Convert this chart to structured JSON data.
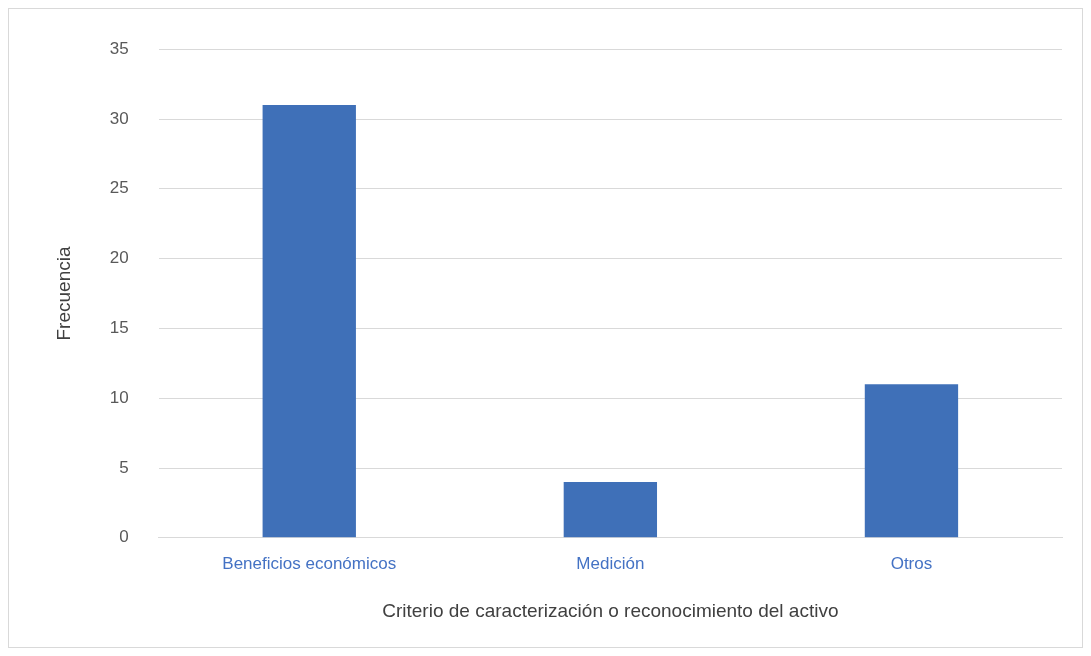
{
  "chart_data": {
    "type": "bar",
    "xlabel": "Criterio de caracterización o reconocimiento del activo",
    "ylabel": "Frecuencia",
    "categories": [
      "Beneficios económicos",
      "Medición",
      "Otros"
    ],
    "values": [
      31,
      4,
      11
    ],
    "color": "#3f70b8",
    "ylim": [
      0,
      35
    ],
    "yticks": [
      0,
      5,
      10,
      15,
      20,
      25,
      30,
      35
    ],
    "grid": "y",
    "legend": false
  }
}
